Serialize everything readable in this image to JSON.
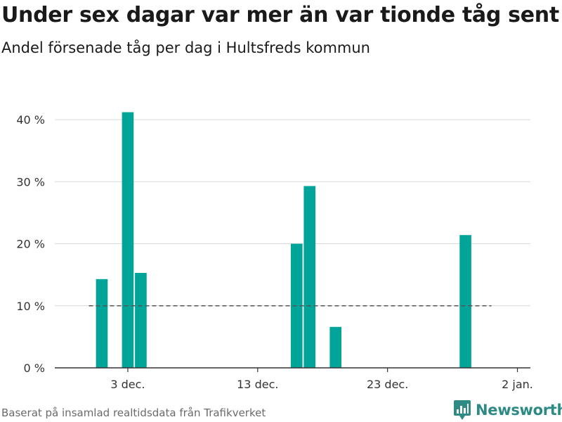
{
  "header": {
    "title": "Under sex dagar var mer än var tionde tåg sent",
    "subtitle": "Andel försenade tåg per dag i Hultsfreds kommun"
  },
  "footer": {
    "source": "Baserat på insamlad realtidsdata från Trafikverket",
    "brand": "Newsworthy"
  },
  "colors": {
    "bar": "#00a499",
    "reference_line": "#555555",
    "grid": "#d9d9d9",
    "brand": "#2d8a84"
  },
  "chart_data": {
    "type": "bar",
    "x_unit": "date",
    "x": [
      "2018-12-01",
      "2018-12-03",
      "2018-12-04",
      "2018-12-16",
      "2018-12-17",
      "2018-12-19",
      "2018-12-29"
    ],
    "values": [
      14.3,
      41.2,
      15.3,
      20.0,
      29.3,
      6.6,
      21.4
    ],
    "xlim": [
      "2018-11-29",
      "2019-01-03"
    ],
    "ylim": [
      0,
      45
    ],
    "y_ticks": [
      {
        "value": 0,
        "label": "0 %"
      },
      {
        "value": 10,
        "label": "10 %"
      },
      {
        "value": 20,
        "label": "20 %"
      },
      {
        "value": 30,
        "label": "30 %"
      },
      {
        "value": 40,
        "label": "40 %"
      }
    ],
    "x_ticks": [
      {
        "value": "2018-12-03",
        "label": "3 dec."
      },
      {
        "value": "2018-12-13",
        "label": "13 dec."
      },
      {
        "value": "2018-12-23",
        "label": "23 dec."
      },
      {
        "value": "2019-01-02",
        "label": "2 jan."
      }
    ],
    "reference_line": {
      "value": 10,
      "style": "dashed",
      "from": "2018-11-30",
      "to": "2018-12-31"
    },
    "grid": true
  }
}
